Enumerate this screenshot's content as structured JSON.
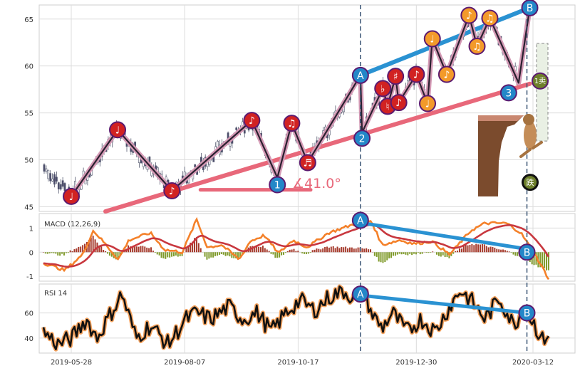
{
  "chart_data": [
    {
      "type": "candlestick",
      "panel": "price",
      "ylim": [
        44.5,
        66.5
      ],
      "y_ticks": [
        "45",
        "50",
        "55",
        "60",
        "65"
      ],
      "x_ticks": [
        "2019-05-28",
        "2019-08-07",
        "2019-10-17",
        "2019-12-30",
        "2020-03-12"
      ],
      "zigzag_points": [
        {
          "x": "2019-05-28",
          "y": 46.1
        },
        {
          "x": "2019-06-26",
          "y": 53.2
        },
        {
          "x": "2019-07-30",
          "y": 46.7
        },
        {
          "x": "2019-09-18",
          "y": 54.2
        },
        {
          "x": "2019-10-04",
          "y": 48.1
        },
        {
          "x": "2019-10-13",
          "y": 53.9
        },
        {
          "x": "2019-10-23",
          "y": 49.7
        },
        {
          "x": "2019-11-25",
          "y": 59.0
        },
        {
          "x": "2019-11-26",
          "y": 52.9
        },
        {
          "x": "2019-12-09",
          "y": 57.6
        },
        {
          "x": "2019-12-12",
          "y": 55.7
        },
        {
          "x": "2019-12-17",
          "y": 58.9
        },
        {
          "x": "2019-12-19",
          "y": 56.1
        },
        {
          "x": "2019-12-30",
          "y": 59.1
        },
        {
          "x": "2020-01-06",
          "y": 56.0
        },
        {
          "x": "2020-01-09",
          "y": 62.9
        },
        {
          "x": "2020-01-18",
          "y": 59.1
        },
        {
          "x": "2020-02-01",
          "y": 65.4
        },
        {
          "x": "2020-02-06",
          "y": 62.1
        },
        {
          "x": "2020-02-14",
          "y": 65.1
        },
        {
          "x": "2020-03-03",
          "y": 58.2
        },
        {
          "x": "2020-03-10",
          "y": 66.2
        }
      ],
      "pattern_labels": [
        "A",
        "B",
        "1",
        "2",
        "3"
      ],
      "angle_label": "∡41.0°",
      "callout_labels": [
        "1卖",
        "跌"
      ]
    },
    {
      "type": "line",
      "panel": "macd",
      "title": "MACD (12,26,9)",
      "ylim": [
        -1.2,
        1.6
      ],
      "y_ticks": [
        "1",
        "0",
        "-1"
      ],
      "divergence_labels": [
        "A",
        "B"
      ]
    },
    {
      "type": "line",
      "panel": "rsi",
      "title": "RSI 14",
      "ylim": [
        28,
        83
      ],
      "y_ticks": [
        "60",
        "40"
      ],
      "divergence_labels": [
        "A",
        "B"
      ]
    }
  ],
  "colors": {
    "candle_up": "#4b4b6b",
    "zigzag": "#d49ab5",
    "trendline": "#e8687a",
    "upper_line": "#2a92d2",
    "macd_fast": "#f4812a",
    "macd_slow": "#c8373e",
    "hist_up": "#a53a2c",
    "hist_down": "#7f9a2a",
    "rsi_line": "#111111",
    "rsi_glow": "#f4a35f",
    "circle_red": "#d12222",
    "circle_orange": "#f39a2a",
    "circle_blue": "#2387c8",
    "circle_olive": "#6d7f2a",
    "grid": "#dcdcdc",
    "axis_text": "#333333"
  }
}
